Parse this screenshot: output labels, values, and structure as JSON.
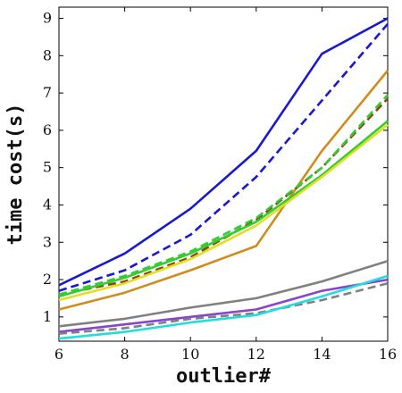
{
  "chart_data": {
    "type": "line",
    "title": "",
    "xlabel": "outlier#",
    "ylabel": "time cost(s)",
    "x": [
      6,
      8,
      10,
      12,
      14,
      16
    ],
    "xlim": [
      6,
      16
    ],
    "ylim": [
      0.35,
      9.3
    ],
    "xticks": [
      6,
      8,
      10,
      12,
      14,
      16
    ],
    "yticks": [
      1,
      2,
      3,
      4,
      5,
      6,
      7,
      8,
      9
    ],
    "grid": false,
    "legend": "none",
    "series": [
      {
        "color": "#1a1acd",
        "dash": false,
        "values": [
          1.85,
          2.7,
          3.9,
          5.45,
          8.05,
          9.0
        ]
      },
      {
        "color": "#1a1acd",
        "dash": true,
        "values": [
          1.7,
          2.25,
          3.2,
          4.75,
          6.8,
          8.85
        ]
      },
      {
        "color": "#d08c1c",
        "dash": false,
        "values": [
          1.2,
          1.65,
          2.25,
          2.9,
          5.45,
          7.6
        ]
      },
      {
        "color": "#8b4513",
        "dash": true,
        "values": [
          1.6,
          1.95,
          2.6,
          3.6,
          5.0,
          6.85
        ]
      },
      {
        "color": "#33cc33",
        "dash": false,
        "values": [
          1.55,
          2.05,
          2.7,
          3.55,
          4.8,
          6.25
        ]
      },
      {
        "color": "#e0e020",
        "dash": false,
        "values": [
          1.45,
          1.9,
          2.55,
          3.45,
          4.75,
          6.15
        ]
      },
      {
        "color": "#33cc33",
        "dash": true,
        "values": [
          1.6,
          2.1,
          2.75,
          3.65,
          5.0,
          6.95
        ]
      },
      {
        "color": "#808080",
        "dash": false,
        "values": [
          0.75,
          0.95,
          1.25,
          1.5,
          1.95,
          2.5
        ]
      },
      {
        "color": "#8844cc",
        "dash": false,
        "values": [
          0.6,
          0.8,
          1.0,
          1.2,
          1.7,
          2.0
        ]
      },
      {
        "color": "#808080",
        "dash": true,
        "values": [
          0.55,
          0.7,
          0.95,
          1.1,
          1.45,
          1.9
        ]
      },
      {
        "color": "#22dddd",
        "dash": false,
        "values": [
          0.42,
          0.6,
          0.85,
          1.05,
          1.55,
          2.1
        ]
      }
    ]
  }
}
